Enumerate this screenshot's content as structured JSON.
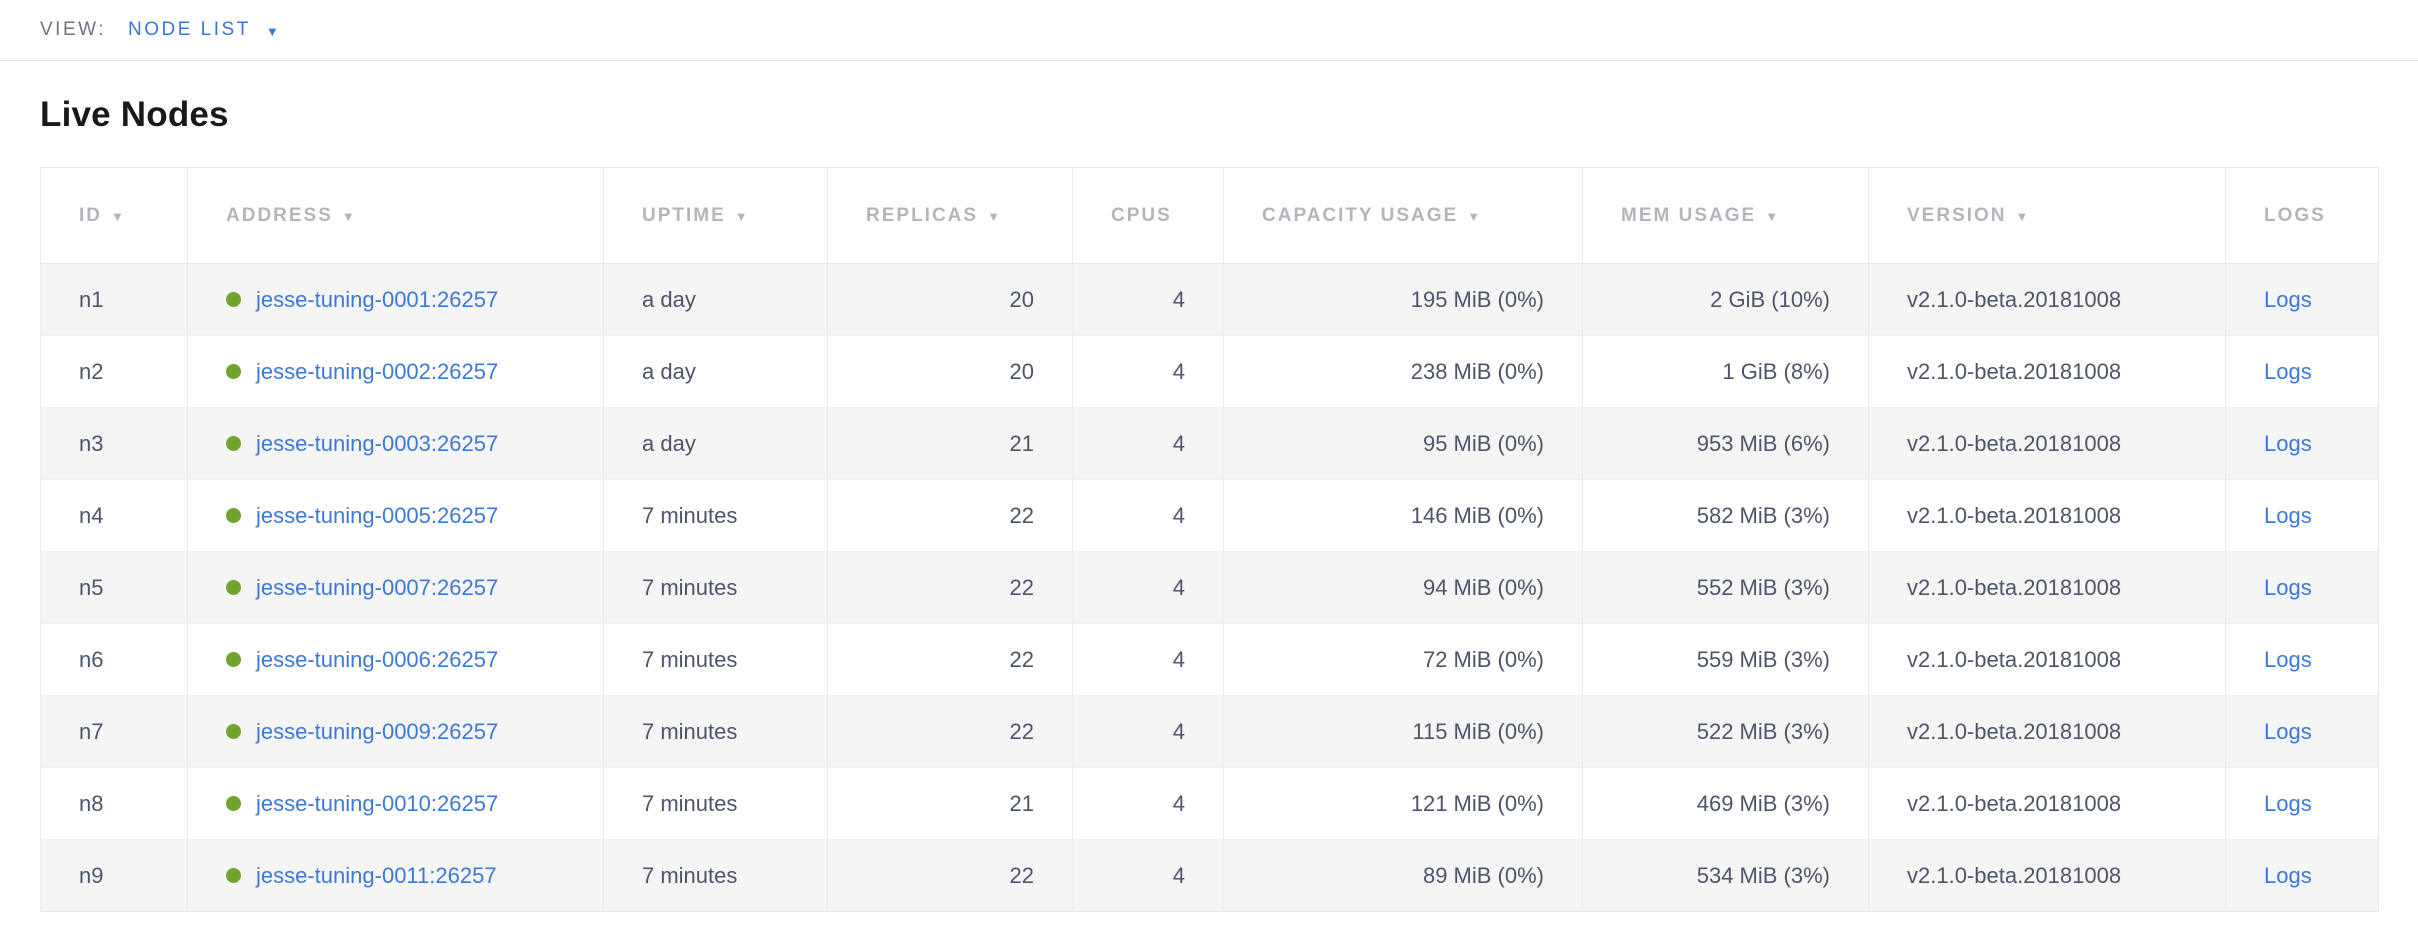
{
  "view_bar": {
    "label": "VIEW:",
    "selected": "NODE LIST"
  },
  "page": {
    "title": "Live Nodes"
  },
  "icons": {
    "sort_desc": "▼",
    "dropdown_caret": "▼"
  },
  "colors": {
    "accent_blue": "#3c76d5",
    "link_blue": "#3d79d7",
    "live_green": "#71a42d",
    "header_gray": "#b2b6bb",
    "text_slate": "#4d5568",
    "row_stripe": "#f5f5f6",
    "border": "#e4e4e6"
  },
  "table": {
    "columns": [
      {
        "key": "id",
        "label": "ID",
        "sortable": true,
        "align": "left"
      },
      {
        "key": "address",
        "label": "ADDRESS",
        "sortable": true,
        "align": "left",
        "type": "link_with_dot"
      },
      {
        "key": "uptime",
        "label": "UPTIME",
        "sortable": true,
        "align": "left"
      },
      {
        "key": "replicas",
        "label": "REPLICAS",
        "sortable": true,
        "align": "right"
      },
      {
        "key": "cpus",
        "label": "CPUS",
        "sortable": false,
        "align": "right"
      },
      {
        "key": "capacity_usage",
        "label": "CAPACITY USAGE",
        "sortable": true,
        "align": "right"
      },
      {
        "key": "mem_usage",
        "label": "MEM USAGE",
        "sortable": true,
        "align": "right"
      },
      {
        "key": "version",
        "label": "VERSION",
        "sortable": true,
        "align": "left"
      },
      {
        "key": "logs",
        "label": "LOGS",
        "sortable": false,
        "align": "left",
        "type": "link"
      }
    ],
    "rows": [
      {
        "id": "n1",
        "status": "live",
        "address": "jesse-tuning-0001:26257",
        "uptime": "a day",
        "replicas": "20",
        "cpus": "4",
        "capacity_usage": "195 MiB (0%)",
        "mem_usage": "2 GiB (10%)",
        "version": "v2.1.0-beta.20181008",
        "logs": "Logs"
      },
      {
        "id": "n2",
        "status": "live",
        "address": "jesse-tuning-0002:26257",
        "uptime": "a day",
        "replicas": "20",
        "cpus": "4",
        "capacity_usage": "238 MiB (0%)",
        "mem_usage": "1 GiB (8%)",
        "version": "v2.1.0-beta.20181008",
        "logs": "Logs"
      },
      {
        "id": "n3",
        "status": "live",
        "address": "jesse-tuning-0003:26257",
        "uptime": "a day",
        "replicas": "21",
        "cpus": "4",
        "capacity_usage": "95 MiB (0%)",
        "mem_usage": "953 MiB (6%)",
        "version": "v2.1.0-beta.20181008",
        "logs": "Logs"
      },
      {
        "id": "n4",
        "status": "live",
        "address": "jesse-tuning-0005:26257",
        "uptime": "7 minutes",
        "replicas": "22",
        "cpus": "4",
        "capacity_usage": "146 MiB (0%)",
        "mem_usage": "582 MiB (3%)",
        "version": "v2.1.0-beta.20181008",
        "logs": "Logs"
      },
      {
        "id": "n5",
        "status": "live",
        "address": "jesse-tuning-0007:26257",
        "uptime": "7 minutes",
        "replicas": "22",
        "cpus": "4",
        "capacity_usage": "94 MiB (0%)",
        "mem_usage": "552 MiB (3%)",
        "version": "v2.1.0-beta.20181008",
        "logs": "Logs"
      },
      {
        "id": "n6",
        "status": "live",
        "address": "jesse-tuning-0006:26257",
        "uptime": "7 minutes",
        "replicas": "22",
        "cpus": "4",
        "capacity_usage": "72 MiB (0%)",
        "mem_usage": "559 MiB (3%)",
        "version": "v2.1.0-beta.20181008",
        "logs": "Logs"
      },
      {
        "id": "n7",
        "status": "live",
        "address": "jesse-tuning-0009:26257",
        "uptime": "7 minutes",
        "replicas": "22",
        "cpus": "4",
        "capacity_usage": "115 MiB (0%)",
        "mem_usage": "522 MiB (3%)",
        "version": "v2.1.0-beta.20181008",
        "logs": "Logs"
      },
      {
        "id": "n8",
        "status": "live",
        "address": "jesse-tuning-0010:26257",
        "uptime": "7 minutes",
        "replicas": "21",
        "cpus": "4",
        "capacity_usage": "121 MiB (0%)",
        "mem_usage": "469 MiB (3%)",
        "version": "v2.1.0-beta.20181008",
        "logs": "Logs"
      },
      {
        "id": "n9",
        "status": "live",
        "address": "jesse-tuning-0011:26257",
        "uptime": "7 minutes",
        "replicas": "22",
        "cpus": "4",
        "capacity_usage": "89 MiB (0%)",
        "mem_usage": "534 MiB (3%)",
        "version": "v2.1.0-beta.20181008",
        "logs": "Logs"
      }
    ]
  }
}
